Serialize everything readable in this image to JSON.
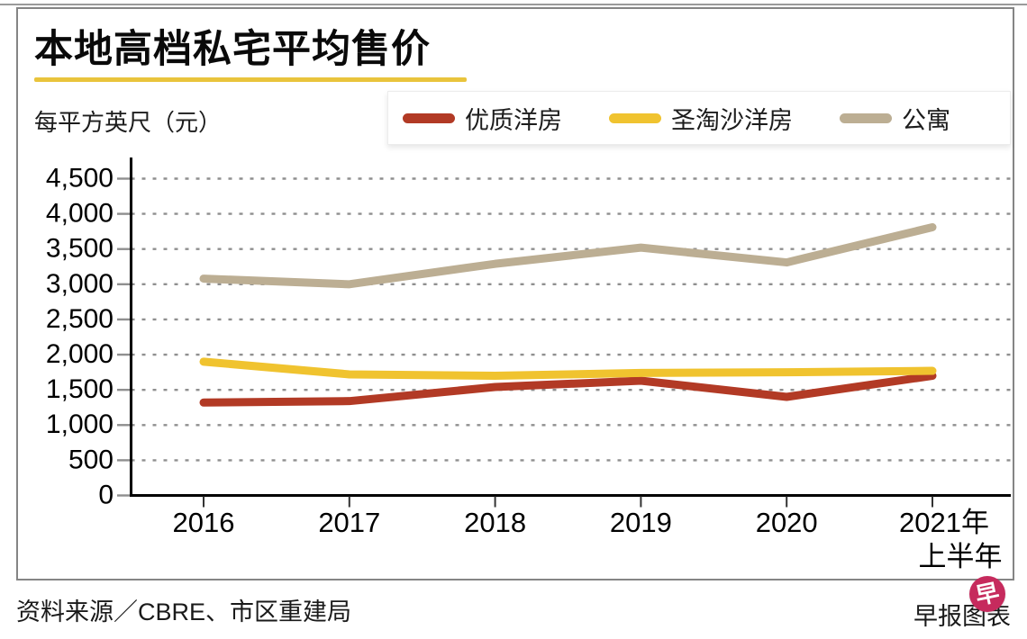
{
  "title": "本地高档私宅平均售价",
  "unit_label": "每平方英尺（元）",
  "chart_data": {
    "type": "line",
    "title": "本地高档私宅平均售价",
    "ylabel": "每平方英尺（元）",
    "categories": [
      "2016",
      "2017",
      "2018",
      "2019",
      "2020",
      "2021年"
    ],
    "last_category_sub_label": "上半年",
    "series": [
      {
        "name": "优质洋房",
        "color": "#b23a25",
        "values": [
          1320,
          1340,
          1540,
          1630,
          1400,
          1700
        ]
      },
      {
        "name": "圣淘沙洋房",
        "color": "#f0c32f",
        "values": [
          1900,
          1720,
          1700,
          1740,
          1750,
          1770
        ]
      },
      {
        "name": "公寓",
        "color": "#bcae93",
        "values": [
          3080,
          3000,
          3290,
          3520,
          3310,
          3810
        ]
      }
    ],
    "ylim": [
      0,
      4500
    ],
    "ytick_step": 500,
    "ytick_labels": [
      "0",
      "500",
      "1,000",
      "1,500",
      "2,000",
      "2,500",
      "3,000",
      "3,500",
      "4,000",
      "4,500"
    ],
    "grid": "horizontal-dashed",
    "legend_position": "top-right"
  },
  "footer": {
    "source": "资料来源／CBRE、市区重建局",
    "credit": "早报图表",
    "logo_char": "早"
  },
  "colors": {
    "title_underline": "#e9c43c",
    "axis": "#000000",
    "gridline": "#8f8f8f",
    "logo_pink": "#c62a5d"
  }
}
